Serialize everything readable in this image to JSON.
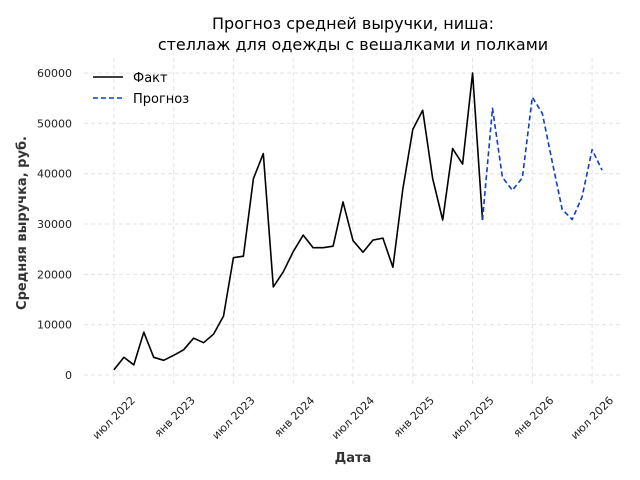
{
  "chart_data": {
    "type": "line",
    "title_line1": "Прогноз средней выручки, ниша:",
    "title_line2": "стеллаж для одежды с вешалками и полками",
    "xlabel": "Дата",
    "ylabel": "Средняя выручка, руб.",
    "ylim": [
      -2000,
      63000
    ],
    "yticks": [
      0,
      10000,
      20000,
      30000,
      40000,
      50000,
      60000
    ],
    "xlim": [
      "2022-04",
      "2026-10"
    ],
    "xticks": [
      {
        "date": "2022-07",
        "label": "июл 2022"
      },
      {
        "date": "2023-01",
        "label": "янв 2023"
      },
      {
        "date": "2023-07",
        "label": "июл 2023"
      },
      {
        "date": "2024-01",
        "label": "янв 2024"
      },
      {
        "date": "2024-07",
        "label": "июл 2024"
      },
      {
        "date": "2025-01",
        "label": "янв 2025"
      },
      {
        "date": "2025-07",
        "label": "июл 2025"
      },
      {
        "date": "2026-01",
        "label": "янв 2026"
      },
      {
        "date": "2026-07",
        "label": "июл 2026"
      }
    ],
    "grid": true,
    "legend_position": "top-left",
    "series": [
      {
        "name": "Факт",
        "color": "#000000",
        "style": "solid",
        "points": [
          [
            "2022-07",
            1000
          ],
          [
            "2022-08",
            3500
          ],
          [
            "2022-09",
            2000
          ],
          [
            "2022-10",
            8500
          ],
          [
            "2022-11",
            3500
          ],
          [
            "2022-12",
            2900
          ],
          [
            "2023-01",
            3900
          ],
          [
            "2023-02",
            5000
          ],
          [
            "2023-03",
            7300
          ],
          [
            "2023-04",
            6400
          ],
          [
            "2023-05",
            8100
          ],
          [
            "2023-06",
            11700
          ],
          [
            "2023-07",
            23300
          ],
          [
            "2023-08",
            23600
          ],
          [
            "2023-09",
            39000
          ],
          [
            "2023-10",
            44000
          ],
          [
            "2023-11",
            17500
          ],
          [
            "2023-12",
            20500
          ],
          [
            "2024-01",
            24500
          ],
          [
            "2024-02",
            27800
          ],
          [
            "2024-03",
            25300
          ],
          [
            "2024-04",
            25300
          ],
          [
            "2024-05",
            25600
          ],
          [
            "2024-06",
            34400
          ],
          [
            "2024-07",
            26700
          ],
          [
            "2024-08",
            24400
          ],
          [
            "2024-09",
            26800
          ],
          [
            "2024-10",
            27200
          ],
          [
            "2024-11",
            21400
          ],
          [
            "2024-12",
            36900
          ],
          [
            "2025-01",
            48800
          ],
          [
            "2025-02",
            52600
          ],
          [
            "2025-03",
            39000
          ],
          [
            "2025-04",
            30800
          ],
          [
            "2025-05",
            45000
          ],
          [
            "2025-06",
            41900
          ],
          [
            "2025-07",
            60000
          ],
          [
            "2025-08",
            30800
          ]
        ]
      },
      {
        "name": "Прогноз",
        "color": "#0a3fc6",
        "style": "dashed",
        "points": [
          [
            "2025-08",
            30800
          ],
          [
            "2025-09",
            53000
          ],
          [
            "2025-10",
            39300
          ],
          [
            "2025-11",
            36700
          ],
          [
            "2025-12",
            39200
          ],
          [
            "2026-01",
            55200
          ],
          [
            "2026-02",
            52000
          ],
          [
            "2026-03",
            42300
          ],
          [
            "2026-04",
            32900
          ],
          [
            "2026-05",
            30900
          ],
          [
            "2026-06",
            35400
          ],
          [
            "2026-07",
            44800
          ],
          [
            "2026-08",
            40700
          ]
        ]
      }
    ]
  }
}
